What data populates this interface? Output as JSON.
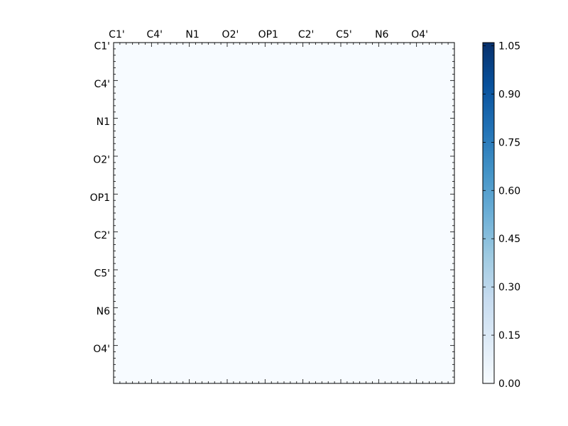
{
  "chart_data": {
    "type": "heatmap",
    "title": "",
    "xlabel": "",
    "ylabel": "",
    "n_cells": 54,
    "row_labels": [
      "C1'",
      "C4'",
      "N1",
      "O2'",
      "OP1",
      "C2'",
      "C5'",
      "N6",
      "O4'"
    ],
    "col_labels": [
      "C1'",
      "C4'",
      "N1",
      "O2'",
      "OP1",
      "C2'",
      "C5'",
      "N6",
      "O4'"
    ],
    "label_every": 6,
    "x_axis_position": "top",
    "grid": false,
    "colormap": "Blues",
    "colorbar": {
      "vmin": 0.0,
      "vmax": 1.06,
      "ticks": [
        "0.00",
        "0.15",
        "0.30",
        "0.45",
        "0.60",
        "0.75",
        "0.90",
        "1.05"
      ],
      "tick_values": [
        0,
        0.15,
        0.3,
        0.45,
        0.6,
        0.75,
        0.9,
        1.05
      ]
    },
    "colors": {
      "lowest": "#f7fbff",
      "highest": "#08306b"
    },
    "note_on_values": "upper-triangle matrix; values estimated from colour",
    "values_sparse": []
  }
}
